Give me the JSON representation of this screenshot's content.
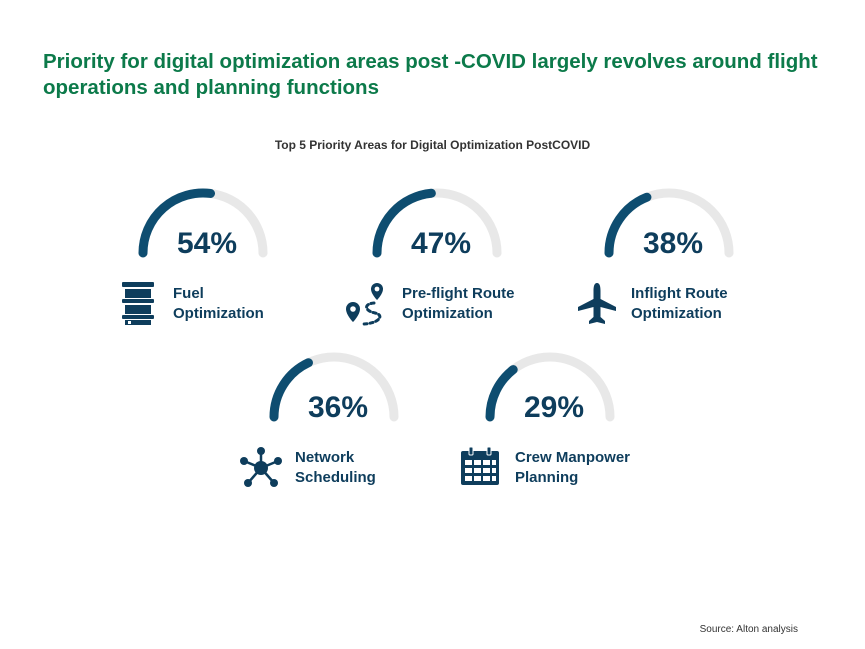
{
  "headline": "Priority for digital optimization areas post  -COVID largely revolves around flight operations and planning functions",
  "source": "Source: Alton analysis",
  "colors": {
    "headline": "#0c7a4a",
    "gauge_fill": "#0e4d70",
    "gauge_track": "#e8e8e8",
    "text_dark": "#0e3d5c"
  },
  "chart_data": {
    "type": "gauge",
    "title": "Top 5 Priority Areas for Digital Optimization PostCOVID",
    "unit": "%",
    "max": 100,
    "items": [
      {
        "label_line1": "Fuel",
        "label_line2": "Optimization",
        "value": 54,
        "display": "54%",
        "icon": "fuel-barrel-icon"
      },
      {
        "label_line1": "Pre-flight Route",
        "label_line2": "Optimization",
        "value": 47,
        "display": "47%",
        "icon": "route-pin-icon"
      },
      {
        "label_line1": "Inflight Route",
        "label_line2": "Optimization",
        "value": 38,
        "display": "38%",
        "icon": "airplane-icon"
      },
      {
        "label_line1": "Network",
        "label_line2": "Scheduling",
        "value": 36,
        "display": "36%",
        "icon": "network-icon"
      },
      {
        "label_line1": "Crew Manpower",
        "label_line2": "Planning",
        "value": 29,
        "display": "29%",
        "icon": "calendar-icon"
      }
    ]
  }
}
